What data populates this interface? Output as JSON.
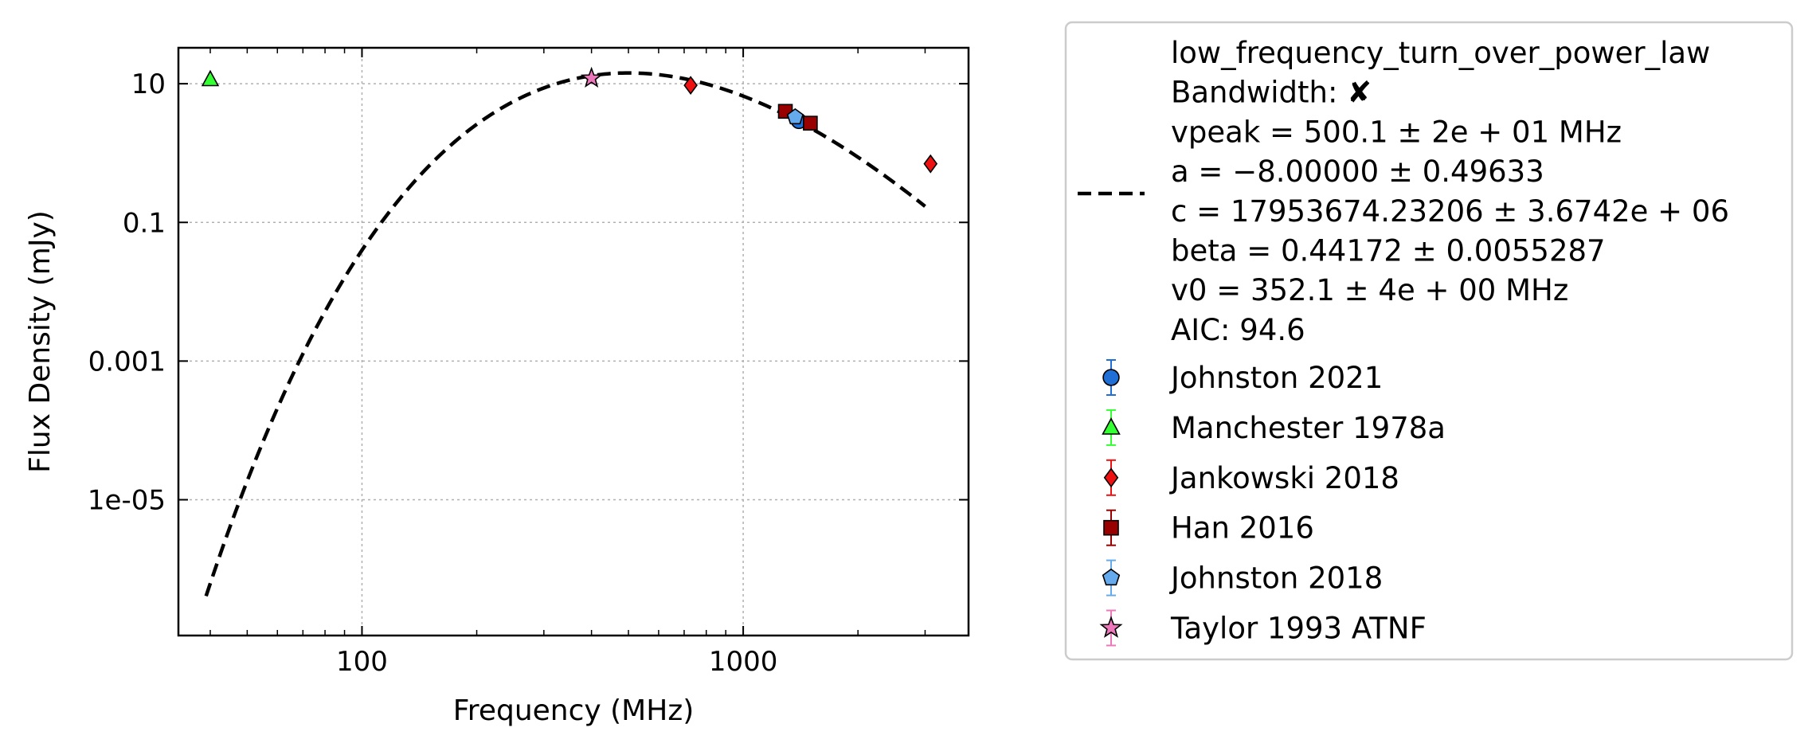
{
  "chart_data": {
    "type": "scatter",
    "xlabel": "Frequency (MHz)",
    "ylabel": "Flux Density (mJy)",
    "xscale": "log",
    "yscale": "log",
    "xlim": [
      33,
      3900
    ],
    "ylim": [
      1.1e-07,
      33
    ],
    "x_ticks": [
      {
        "value": 100,
        "label": "100"
      },
      {
        "value": 1000,
        "label": "1000"
      }
    ],
    "y_ticks": [
      {
        "value": 10,
        "label": "10"
      },
      {
        "value": 0.1,
        "label": "0.1"
      },
      {
        "value": 0.001,
        "label": "0.001"
      },
      {
        "value": 1e-05,
        "label": "1e-05"
      }
    ],
    "grid": true,
    "legend_position": "outside-right",
    "fit": {
      "model": "low_frequency_turn_over_power_law",
      "style": "dashed",
      "color": "#000000",
      "params": {
        "vpeak": 500.1,
        "a": -8.0,
        "c": 17953674.23206,
        "beta": 0.44172,
        "v0": 352.1
      },
      "x_range": [
        39,
        3000
      ],
      "legend_lines": [
        "low_frequency_turn_over_power_law",
        "Bandwidth: ✘",
        "vpeak = 500.1 ± 2e + 01 MHz",
        "a = −8.00000 ± 0.49633",
        "c = 17953674.23206 ± 3.6742e + 06",
        "beta = 0.44172 ± 0.0055287",
        "v0 = 352.1 ± 4e + 00 MHz",
        "AIC: 94.6"
      ]
    },
    "series": [
      {
        "name": "Johnston 2021",
        "marker": "circle",
        "color": "#1f6fd6",
        "points": [
          {
            "x": 1400,
            "y": 2.9
          }
        ]
      },
      {
        "name": "Manchester 1978a",
        "marker": "triangle",
        "color": "#33ff33",
        "points": [
          {
            "x": 40,
            "y": 11.5
          }
        ]
      },
      {
        "name": "Jankowski 2018",
        "marker": "diamond",
        "color": "#ee1111",
        "points": [
          {
            "x": 728,
            "y": 9.5
          },
          {
            "x": 3100,
            "y": 0.7
          }
        ]
      },
      {
        "name": "Han 2016",
        "marker": "square",
        "color": "#990000",
        "points": [
          {
            "x": 1290,
            "y": 4.0
          },
          {
            "x": 1500,
            "y": 2.7
          }
        ]
      },
      {
        "name": "Johnston 2018",
        "marker": "pentagon",
        "color": "#66aaee",
        "points": [
          {
            "x": 1369,
            "y": 3.3
          }
        ]
      },
      {
        "name": "Taylor 1993 ATNF",
        "marker": "star",
        "color": "#ee77bb",
        "points": [
          {
            "x": 400,
            "y": 12.0
          }
        ]
      }
    ]
  }
}
